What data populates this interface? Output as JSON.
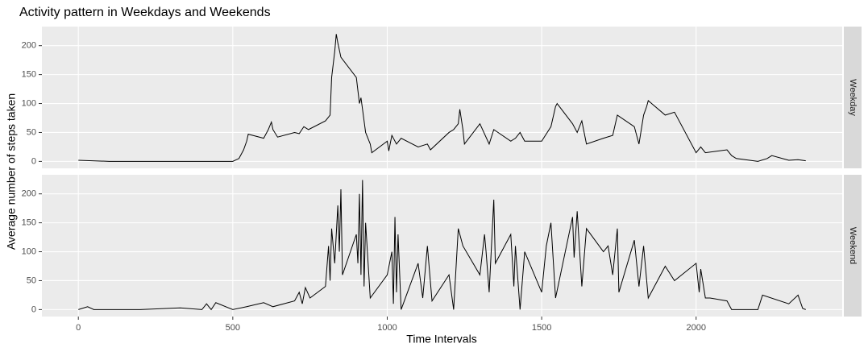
{
  "chart_data": {
    "type": "line",
    "facet": true,
    "title": "Activity pattern in Weekdays and Weekends",
    "x_label": "Time Intervals",
    "y_label": "Average number of steps taken",
    "xlim": [
      -118,
      2473
    ],
    "xticks": [
      0,
      500,
      1000,
      1500,
      2000
    ],
    "ylim": [
      -12,
      233
    ],
    "yticks": [
      0,
      50,
      100,
      150,
      200
    ],
    "grid": true,
    "series": [
      {
        "name": "Weekday",
        "color": "#000000",
        "x": [
          0,
          100,
          200,
          300,
          400,
          500,
          520,
          535,
          545,
          550,
          600,
          615,
          625,
          630,
          645,
          700,
          715,
          730,
          745,
          800,
          815,
          820,
          830,
          835,
          840,
          850,
          900,
          910,
          915,
          930,
          945,
          950,
          1000,
          1005,
          1015,
          1030,
          1045,
          1100,
          1130,
          1140,
          1200,
          1215,
          1230,
          1235,
          1245,
          1250,
          1300,
          1330,
          1345,
          1400,
          1415,
          1430,
          1445,
          1500,
          1530,
          1545,
          1550,
          1600,
          1615,
          1630,
          1645,
          1700,
          1730,
          1745,
          1800,
          1815,
          1830,
          1840,
          1845,
          1900,
          1930,
          2000,
          2015,
          2030,
          2100,
          2115,
          2130,
          2200,
          2230,
          2245,
          2300,
          2330,
          2355
        ],
        "values": [
          2,
          0,
          0,
          0,
          0,
          0,
          5,
          20,
          35,
          47,
          40,
          55,
          68,
          55,
          42,
          50,
          48,
          60,
          55,
          70,
          80,
          145,
          190,
          220,
          205,
          180,
          145,
          100,
          110,
          50,
          30,
          15,
          35,
          18,
          45,
          30,
          40,
          25,
          30,
          20,
          50,
          55,
          65,
          90,
          55,
          30,
          65,
          30,
          55,
          35,
          40,
          50,
          35,
          35,
          60,
          95,
          100,
          65,
          50,
          70,
          30,
          40,
          45,
          80,
          60,
          30,
          80,
          95,
          105,
          80,
          85,
          15,
          25,
          15,
          20,
          10,
          5,
          0,
          5,
          10,
          2,
          3,
          1
        ]
      },
      {
        "name": "Weekend",
        "color": "#000000",
        "x": [
          0,
          30,
          50,
          200,
          330,
          400,
          415,
          430,
          445,
          500,
          545,
          600,
          630,
          700,
          715,
          725,
          735,
          750,
          800,
          810,
          815,
          820,
          830,
          840,
          845,
          850,
          855,
          900,
          905,
          910,
          915,
          920,
          925,
          930,
          945,
          1000,
          1015,
          1020,
          1025,
          1030,
          1035,
          1045,
          1100,
          1115,
          1130,
          1145,
          1200,
          1215,
          1230,
          1245,
          1300,
          1315,
          1320,
          1330,
          1345,
          1350,
          1400,
          1410,
          1415,
          1430,
          1445,
          1500,
          1515,
          1530,
          1545,
          1600,
          1605,
          1615,
          1630,
          1645,
          1700,
          1715,
          1730,
          1745,
          1750,
          1800,
          1815,
          1830,
          1845,
          1900,
          1930,
          2000,
          2010,
          2015,
          2030,
          2045,
          2100,
          2115,
          2200,
          2215,
          2300,
          2330,
          2345,
          2355
        ],
        "values": [
          0,
          5,
          0,
          0,
          3,
          0,
          10,
          0,
          12,
          0,
          5,
          12,
          5,
          15,
          30,
          10,
          38,
          20,
          40,
          110,
          50,
          140,
          80,
          180,
          100,
          208,
          60,
          130,
          80,
          200,
          60,
          224,
          40,
          150,
          20,
          60,
          100,
          10,
          160,
          30,
          130,
          0,
          80,
          20,
          110,
          15,
          60,
          0,
          140,
          110,
          60,
          130,
          100,
          30,
          190,
          80,
          130,
          40,
          110,
          0,
          100,
          30,
          110,
          150,
          20,
          160,
          90,
          170,
          40,
          140,
          100,
          110,
          60,
          140,
          30,
          120,
          40,
          110,
          20,
          75,
          50,
          80,
          30,
          70,
          20,
          20,
          15,
          0,
          0,
          25,
          10,
          25,
          2,
          0
        ]
      }
    ]
  }
}
